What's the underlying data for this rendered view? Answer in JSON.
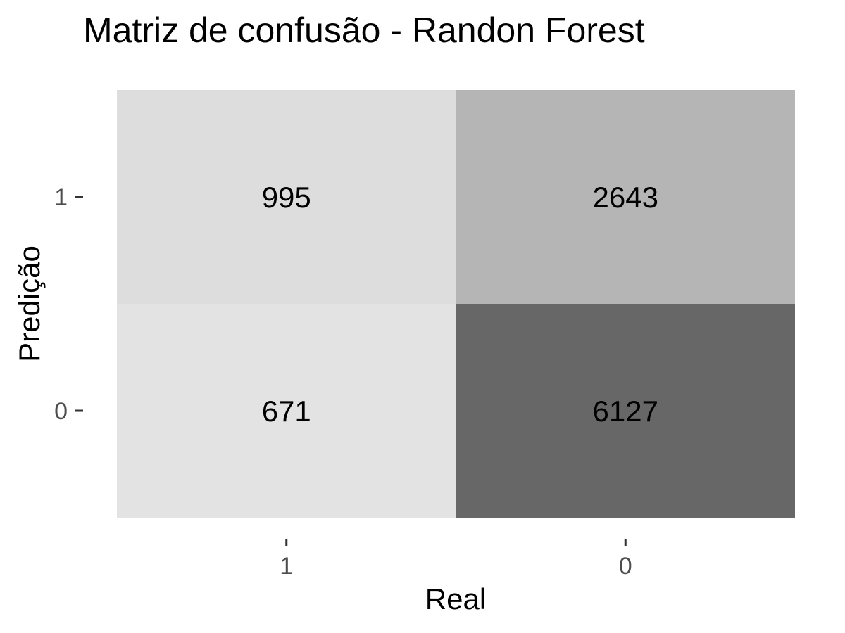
{
  "chart_data": {
    "type": "heatmap",
    "title": "Matriz de confusão - Randon Forest",
    "xlabel": "Real",
    "ylabel": "Predição",
    "x_categories": [
      "1",
      "0"
    ],
    "y_categories": [
      "1",
      "0"
    ],
    "cells": [
      {
        "real": "1",
        "predicao": "1",
        "value": 995,
        "color": "#dddddd"
      },
      {
        "real": "0",
        "predicao": "1",
        "value": 2643,
        "color": "#b5b5b5"
      },
      {
        "real": "1",
        "predicao": "0",
        "value": 671,
        "color": "#e3e3e3"
      },
      {
        "real": "0",
        "predicao": "0",
        "value": 6127,
        "color": "#676767"
      }
    ],
    "legend": "none",
    "grid": false
  }
}
